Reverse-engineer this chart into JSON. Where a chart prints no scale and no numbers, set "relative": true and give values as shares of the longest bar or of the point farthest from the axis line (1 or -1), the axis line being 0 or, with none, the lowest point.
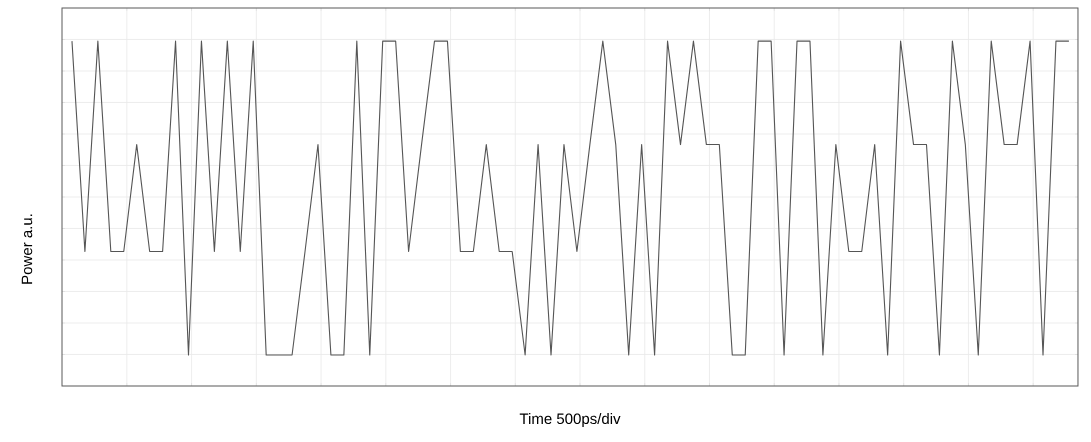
{
  "chart_data": {
    "type": "line",
    "xlabel": "Time 500ps/div",
    "ylabel": "Power a.u.",
    "relative": true,
    "grid": true,
    "marker": "none",
    "line_style": "solid",
    "categories": [
      null,
      null,
      null,
      null,
      null,
      null,
      null,
      null,
      null,
      null,
      null,
      null,
      null,
      null,
      null,
      null,
      null,
      null,
      null,
      null,
      null,
      null,
      null,
      null,
      null,
      null,
      null,
      null,
      null,
      null,
      null,
      null,
      null,
      null,
      null,
      null,
      null,
      null,
      null,
      null,
      null,
      null,
      null,
      null,
      null,
      null,
      null,
      null,
      null,
      null,
      null,
      null,
      null,
      null,
      null,
      null,
      null,
      null,
      null,
      null,
      null,
      null,
      null,
      null,
      null,
      null,
      null,
      null,
      null,
      null,
      null,
      null,
      null,
      null,
      null,
      null,
      null,
      null
    ],
    "series": [
      {
        "color": "#555555",
        "values": [
          1,
          0.39,
          1,
          0.39,
          0.39,
          0.7,
          0.39,
          0.39,
          1,
          0.09,
          1,
          0.39,
          1,
          0.39,
          1,
          0.09,
          0.09,
          0.09,
          0.39,
          0.7,
          0.09,
          0.09,
          1,
          0.09,
          1,
          1,
          0.39,
          0.7,
          1,
          1,
          0.39,
          0.39,
          0.7,
          0.39,
          0.39,
          0.09,
          0.7,
          0.09,
          0.7,
          0.39,
          0.7,
          1,
          0.7,
          0.09,
          0.7,
          0.09,
          1,
          0.7,
          1,
          0.7,
          0.7,
          0.09,
          0.09,
          1,
          1,
          0.09,
          1,
          1,
          0.09,
          0.7,
          0.39,
          0.39,
          0.7,
          0.09,
          1,
          0.7,
          0.7,
          0.09,
          1,
          0.7,
          0.09,
          1,
          0.7,
          0.7,
          1,
          0.09,
          1,
          1
        ]
      }
    ]
  }
}
